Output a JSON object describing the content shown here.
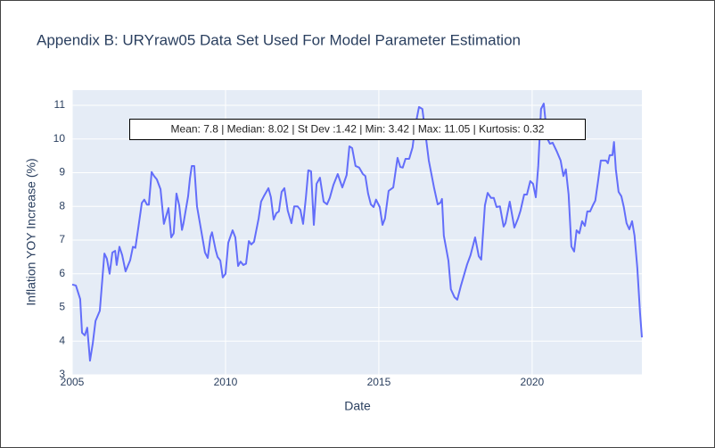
{
  "chart_data": {
    "type": "line",
    "title": "Appendix B: URYraw05 Data Set Used For Model Parameter Estimation",
    "x_label": "Date",
    "y_label": "Inflation YOY Increase (%)",
    "annotation": "Mean: 7.8 | Median: 8.02 | St Dev :1.42 | Min: 3.42 | Max: 11.05 | Kurtosis: 0.32",
    "xlim": [
      2005,
      2023.58
    ],
    "xticks": [
      2005,
      2010,
      2015,
      2020
    ],
    "ylim": [
      3,
      11.45
    ],
    "yticks": [
      3,
      4,
      5,
      6,
      7,
      8,
      9,
      10,
      11
    ],
    "grid": true,
    "x": [
      2005.0,
      2005.12,
      2005.26,
      2005.32,
      2005.41,
      2005.49,
      2005.58,
      2005.67,
      2005.76,
      2005.9,
      2006.05,
      2006.13,
      2006.22,
      2006.31,
      2006.4,
      2006.45,
      2006.54,
      2006.63,
      2006.74,
      2006.89,
      2006.98,
      2007.06,
      2007.15,
      2007.27,
      2007.35,
      2007.44,
      2007.5,
      2007.59,
      2007.67,
      2007.76,
      2007.88,
      2007.99,
      2008.14,
      2008.23,
      2008.31,
      2008.4,
      2008.49,
      2008.58,
      2008.63,
      2008.78,
      2008.84,
      2008.9,
      2008.98,
      2009.07,
      2009.19,
      2009.33,
      2009.42,
      2009.51,
      2009.56,
      2009.68,
      2009.74,
      2009.83,
      2009.91,
      2010.0,
      2010.09,
      2010.23,
      2010.32,
      2010.41,
      2010.49,
      2010.58,
      2010.67,
      2010.76,
      2010.84,
      2010.93,
      2011.08,
      2011.16,
      2011.25,
      2011.4,
      2011.48,
      2011.57,
      2011.66,
      2011.74,
      2011.83,
      2011.92,
      2012.03,
      2012.15,
      2012.24,
      2012.35,
      2012.44,
      2012.53,
      2012.62,
      2012.7,
      2012.79,
      2012.88,
      2012.97,
      2013.08,
      2013.2,
      2013.31,
      2013.4,
      2013.52,
      2013.66,
      2013.81,
      2013.95,
      2014.04,
      2014.13,
      2014.24,
      2014.36,
      2014.48,
      2014.56,
      2014.65,
      2014.74,
      2014.83,
      2014.91,
      2015.03,
      2015.12,
      2015.2,
      2015.32,
      2015.47,
      2015.61,
      2015.7,
      2015.78,
      2015.87,
      2015.99,
      2016.1,
      2016.19,
      2016.31,
      2016.42,
      2016.63,
      2016.8,
      2016.92,
      2017.01,
      2017.06,
      2017.12,
      2017.27,
      2017.35,
      2017.47,
      2017.56,
      2017.67,
      2017.88,
      2017.99,
      2018.14,
      2018.26,
      2018.34,
      2018.46,
      2018.55,
      2018.66,
      2018.75,
      2018.84,
      2018.95,
      2019.07,
      2019.13,
      2019.27,
      2019.42,
      2019.54,
      2019.62,
      2019.74,
      2019.83,
      2019.94,
      2020.03,
      2020.12,
      2020.2,
      2020.29,
      2020.38,
      2020.47,
      2020.52,
      2020.58,
      2020.67,
      2020.81,
      2020.93,
      2021.02,
      2021.1,
      2021.19,
      2021.28,
      2021.37,
      2021.45,
      2021.54,
      2021.63,
      2021.72,
      2021.8,
      2021.89,
      2021.98,
      2022.06,
      2022.15,
      2022.24,
      2022.33,
      2022.41,
      2022.47,
      2022.53,
      2022.62,
      2022.67,
      2022.73,
      2022.82,
      2022.91,
      2022.99,
      2023.08,
      2023.17,
      2023.26,
      2023.34,
      2023.43,
      2023.52,
      2023.58
    ],
    "series": [
      {
        "color": "#636efa",
        "values": [
          5.68,
          5.65,
          5.25,
          4.25,
          4.17,
          4.4,
          3.42,
          3.93,
          4.6,
          4.9,
          6.6,
          6.45,
          6.0,
          6.63,
          6.68,
          6.26,
          6.8,
          6.55,
          6.07,
          6.4,
          6.8,
          6.77,
          7.33,
          8.1,
          8.2,
          8.05,
          8.05,
          9.02,
          8.9,
          8.8,
          8.51,
          7.48,
          7.95,
          7.08,
          7.2,
          8.38,
          8.03,
          7.3,
          7.5,
          8.3,
          8.83,
          9.2,
          9.2,
          8.0,
          7.37,
          6.63,
          6.47,
          7.1,
          7.23,
          6.7,
          6.5,
          6.39,
          5.89,
          6.0,
          6.92,
          7.29,
          7.08,
          6.23,
          6.36,
          6.26,
          6.3,
          6.97,
          6.87,
          6.95,
          7.64,
          8.14,
          8.3,
          8.54,
          8.27,
          7.61,
          7.8,
          7.85,
          8.43,
          8.54,
          7.87,
          7.5,
          8.0,
          8.0,
          7.9,
          7.48,
          8.25,
          9.07,
          9.04,
          7.45,
          8.67,
          8.85,
          8.14,
          8.06,
          8.25,
          8.64,
          8.96,
          8.56,
          8.93,
          9.78,
          9.73,
          9.2,
          9.15,
          8.96,
          8.9,
          8.38,
          8.06,
          7.98,
          8.2,
          7.98,
          7.45,
          7.64,
          8.46,
          8.56,
          9.44,
          9.17,
          9.15,
          9.41,
          9.41,
          9.75,
          10.39,
          10.95,
          10.89,
          9.36,
          8.56,
          8.06,
          8.11,
          8.22,
          7.13,
          6.39,
          5.54,
          5.3,
          5.23,
          5.62,
          6.28,
          6.55,
          7.08,
          6.52,
          6.42,
          8.03,
          8.4,
          8.25,
          8.25,
          7.98,
          8.0,
          7.4,
          7.5,
          8.14,
          7.37,
          7.64,
          7.87,
          8.35,
          8.35,
          8.75,
          8.67,
          8.27,
          9.2,
          10.89,
          11.05,
          10.23,
          9.97,
          9.86,
          9.89,
          9.62,
          9.36,
          8.9,
          9.1,
          8.35,
          6.81,
          6.66,
          7.29,
          7.2,
          7.56,
          7.42,
          7.85,
          7.85,
          8.03,
          8.17,
          8.75,
          9.36,
          9.36,
          9.36,
          9.28,
          9.52,
          9.52,
          9.91,
          9.1,
          8.43,
          8.3,
          7.98,
          7.5,
          7.32,
          7.56,
          7.13,
          6.18,
          4.83,
          4.11
        ]
      }
    ]
  }
}
